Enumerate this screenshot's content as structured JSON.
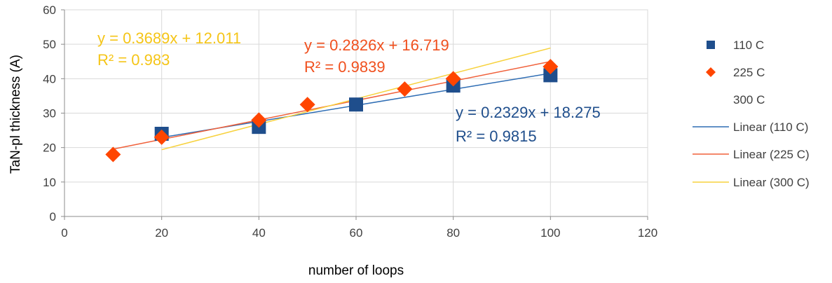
{
  "chart_data": {
    "type": "scatter",
    "xlabel": "number of loops",
    "ylabel": "TaN-pl thickness (A)",
    "xlim": [
      0,
      120
    ],
    "ylim": [
      0,
      60
    ],
    "x_ticks": [
      0,
      20,
      40,
      60,
      80,
      100,
      120
    ],
    "y_ticks": [
      0,
      10,
      20,
      30,
      40,
      50,
      60
    ],
    "grid": true,
    "legend_position": "right",
    "series": [
      {
        "name": "110 C",
        "marker": "square",
        "color": "#1f4e8c",
        "points": [
          [
            20,
            24
          ],
          [
            40,
            26
          ],
          [
            60,
            32.5
          ],
          [
            80,
            38
          ],
          [
            100,
            41
          ]
        ],
        "trend": {
          "name": "Linear (110 C)",
          "slope": 0.2329,
          "intercept": 18.275,
          "x_range": [
            20,
            100
          ],
          "color": "#2e6db4",
          "equation": "y = 0.2329x + 18.275",
          "r2": "R² = 0.9815",
          "label_color": "#1f4e8c"
        }
      },
      {
        "name": "225 C",
        "marker": "diamond",
        "color": "#ff4500",
        "points": [
          [
            10,
            18
          ],
          [
            20,
            23
          ],
          [
            40,
            28
          ],
          [
            50,
            32.5
          ],
          [
            70,
            37
          ],
          [
            80,
            40
          ],
          [
            100,
            43.5
          ]
        ],
        "trend": {
          "name": "Linear (225 C)",
          "slope": 0.2826,
          "intercept": 16.719,
          "x_range": [
            10,
            100
          ],
          "color": "#f0603a",
          "equation": "y = 0.2826x + 16.719",
          "r2": "R² = 0.9839",
          "label_color": "#f0501e"
        }
      },
      {
        "name": "300 C",
        "marker": "none",
        "color": "#f5c518",
        "points": [],
        "trend": {
          "name": "Linear (300 C)",
          "slope": 0.3689,
          "intercept": 12.011,
          "x_range": [
            20,
            100
          ],
          "color": "#f7d23e",
          "equation": "y = 0.3689x + 12.011",
          "r2": "R² = 0.983",
          "label_color": "#f5c518"
        }
      }
    ]
  }
}
